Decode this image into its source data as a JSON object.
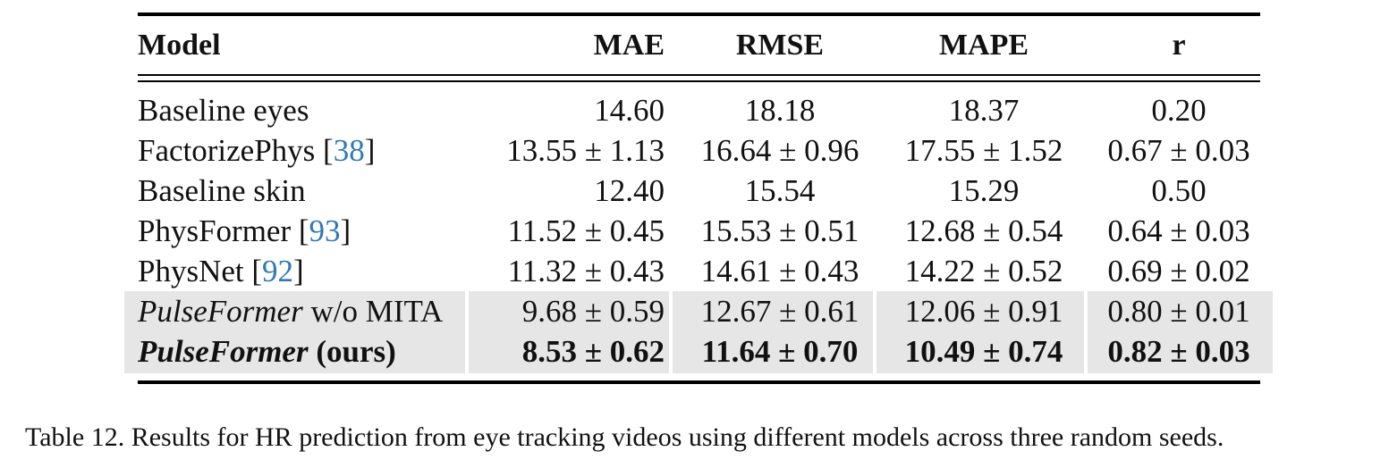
{
  "table": {
    "headers": [
      "Model",
      "MAE",
      "RMSE",
      "MAPE",
      "r"
    ],
    "rows": [
      {
        "model": "Baseline eyes",
        "cite": "",
        "mae": "14.60",
        "rmse": "18.18",
        "mape": "18.37",
        "r": "0.20"
      },
      {
        "model": "FactorizePhys [",
        "cite": "38",
        "cite_close": "]",
        "mae": "13.55 ± 1.13",
        "rmse": "16.64 ± 0.96",
        "mape": "17.55 ± 1.52",
        "r": "0.67 ± 0.03"
      },
      {
        "model": "Baseline skin",
        "cite": "",
        "mae": "12.40",
        "rmse": "15.54",
        "mape": "15.29",
        "r": "0.50"
      },
      {
        "model": "PhysFormer [",
        "cite": "93",
        "cite_close": "]",
        "mae": "11.52 ± 0.45",
        "rmse": "15.53 ± 0.51",
        "mape": "12.68 ± 0.54",
        "r": "0.64 ± 0.03"
      },
      {
        "model": "PhysNet [",
        "cite": "92",
        "cite_close": "]",
        "mae": "11.32 ± 0.43",
        "rmse": "14.61 ± 0.43",
        "mape": "14.22 ± 0.52",
        "r": "0.69 ± 0.02"
      },
      {
        "model_italic": "PulseFormer",
        "model_rest": " w/o MITA",
        "mae": "9.68 ± 0.59",
        "rmse": "12.67 ± 0.61",
        "mape": "12.06 ± 0.91",
        "r": "0.80 ± 0.01"
      },
      {
        "model_italic": "PulseFormer",
        "model_rest": " (ours)",
        "mae": "8.53 ± 0.62",
        "rmse": "11.64 ± 0.70",
        "mape": "10.49 ± 0.74",
        "r": "0.82 ± 0.03"
      }
    ]
  },
  "caption": "Table 12. Results for HR prediction from eye tracking videos using different models across three random seeds.",
  "colors": {
    "citation": "#2f7ab5",
    "highlight": "#e6e6e6"
  }
}
